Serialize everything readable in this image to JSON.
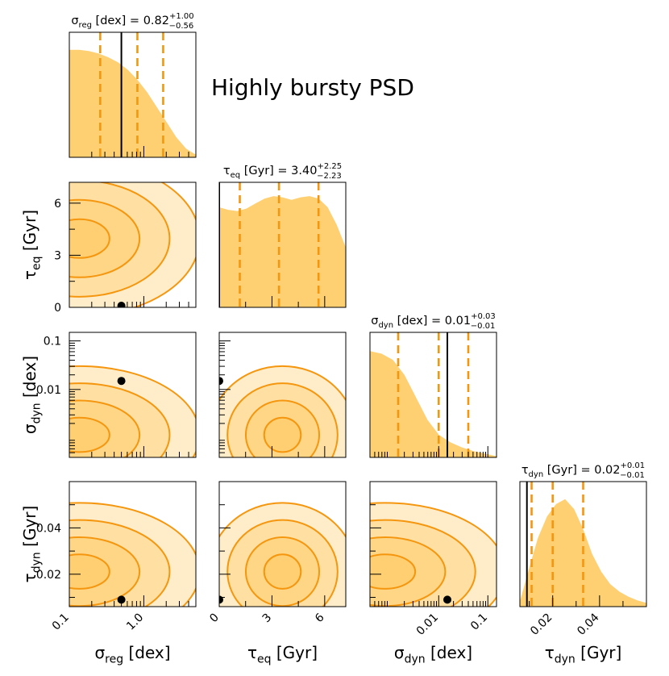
{
  "chart_data": {
    "type": "corner",
    "annotation": "Highly bursty PSD",
    "colors": {
      "accent": "#f5960f",
      "fill": "#ffbe3c",
      "truth": "#000000"
    },
    "parameters": [
      {
        "sym": "σ",
        "sub": "reg",
        "unit": "[dex]",
        "scale": "log",
        "range": [
          0.1,
          5.0
        ],
        "ticks": [
          0.1,
          1.0
        ],
        "tick_labels": [
          "0.1",
          "1.0"
        ],
        "median": 0.82,
        "plus": "+1.00",
        "minus": "−0.56",
        "lo": 0.26,
        "hi": 1.82,
        "truth": 0.5,
        "hist": [
          0.86,
          0.86,
          0.85,
          0.83,
          0.8,
          0.76,
          0.7,
          0.62,
          0.52,
          0.4,
          0.28,
          0.16,
          0.07,
          0.02
        ],
        "title": "σ_reg [dex] = 0.82 (+1.00 / −0.56)"
      },
      {
        "sym": "τ",
        "sub": "eq",
        "unit": "[Gyr]",
        "scale": "linear",
        "range": [
          0,
          7.2
        ],
        "ticks": [
          0,
          3,
          6
        ],
        "tick_labels": [
          "0",
          "3",
          "6"
        ],
        "median": 3.4,
        "plus": "+2.25",
        "minus": "−2.23",
        "lo": 1.17,
        "hi": 5.65,
        "truth": 0.0,
        "hist": [
          0.8,
          0.78,
          0.77,
          0.79,
          0.83,
          0.87,
          0.89,
          0.88,
          0.86,
          0.88,
          0.89,
          0.87,
          0.8,
          0.66,
          0.48
        ],
        "title": "τ_eq [Gyr] = 3.40 (+2.25 / −2.23)"
      },
      {
        "sym": "σ",
        "sub": "dyn",
        "unit": "[dex]",
        "scale": "log",
        "range": [
          0.0004,
          0.15
        ],
        "ticks": [
          0.01,
          0.1
        ],
        "tick_labels": [
          "0.01",
          "0.1"
        ],
        "median": 0.01,
        "plus": "+0.03",
        "minus": "−0.01",
        "lo": 0.0015,
        "hi": 0.04,
        "truth": 0.015,
        "hist": [
          0.85,
          0.83,
          0.78,
          0.66,
          0.48,
          0.3,
          0.18,
          0.12,
          0.08,
          0.05,
          0.03,
          0.01
        ],
        "title": "σ_dyn [dex] = 0.01 (+0.03 / −0.01)"
      },
      {
        "sym": "τ",
        "sub": "dyn",
        "unit": "[Gyr]",
        "scale": "linear",
        "range": [
          0.006,
          0.06
        ],
        "ticks": [
          0.02,
          0.04
        ],
        "tick_labels": [
          "0.02",
          "0.04"
        ],
        "median": 0.02,
        "plus": "+0.01",
        "minus": "−0.01",
        "lo": 0.011,
        "hi": 0.033,
        "truth": 0.009,
        "hist": [
          0.04,
          0.3,
          0.55,
          0.72,
          0.82,
          0.86,
          0.78,
          0.62,
          0.42,
          0.28,
          0.18,
          0.12,
          0.08,
          0.05,
          0.03
        ],
        "title": "τ_dyn [Gyr] = 0.02 (+0.01 / −0.01)"
      }
    ],
    "pairs": [
      {
        "row": 1,
        "col": 0,
        "truth": [
          0.5,
          0.0
        ]
      },
      {
        "row": 2,
        "col": 0,
        "truth": [
          0.5,
          0.015
        ]
      },
      {
        "row": 2,
        "col": 1,
        "truth": [
          0.0,
          0.015
        ]
      },
      {
        "row": 3,
        "col": 0,
        "truth": [
          0.5,
          0.009
        ]
      },
      {
        "row": 3,
        "col": 1,
        "truth": [
          0.0,
          0.009
        ]
      },
      {
        "row": 3,
        "col": 2,
        "truth": [
          0.015,
          0.009
        ]
      }
    ],
    "contour_levels": 4
  }
}
